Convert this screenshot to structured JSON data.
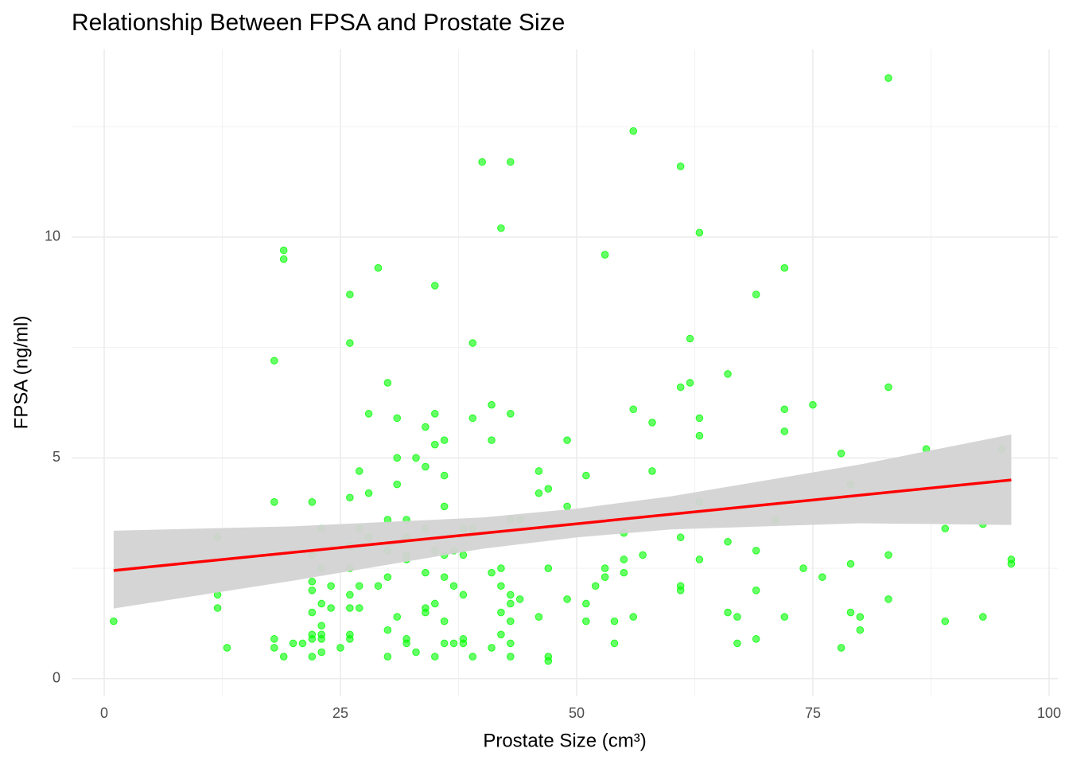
{
  "chart_data": {
    "type": "scatter",
    "title": "Relationship Between FPSA and Prostate Size",
    "x_label": "Prostate Size (cm³)",
    "y_label": "FPSA (ng/ml)",
    "xlim": [
      -3.45,
      100.93
    ],
    "ylim": [
      -0.4,
      14.25
    ],
    "xticks": [
      0,
      25,
      50,
      75,
      100
    ],
    "yticks": [
      0,
      5,
      10
    ],
    "minor_xticks": [
      12.5,
      37.5,
      62.5,
      87.5
    ],
    "minor_yticks": [
      2.5,
      7.5,
      12.5
    ],
    "grid": true,
    "color": "#00ff00",
    "x": [
      1,
      12,
      12,
      12,
      13,
      18,
      18,
      18,
      18,
      19,
      19,
      19,
      20,
      21,
      22,
      22,
      22,
      22,
      22,
      22,
      22,
      22,
      23,
      23,
      23,
      23,
      23,
      23,
      23,
      24,
      24,
      25,
      26,
      26,
      26,
      26,
      26,
      26,
      26,
      26,
      26,
      27,
      27,
      27,
      27,
      28,
      28,
      28,
      29,
      29,
      30,
      30,
      30,
      30,
      30,
      30,
      31,
      31,
      31,
      31,
      32,
      32,
      32,
      32,
      32,
      32,
      33,
      33,
      34,
      34,
      34,
      34,
      34,
      34,
      35,
      35,
      35,
      35,
      35,
      35,
      36,
      36,
      36,
      36,
      36,
      36,
      36,
      37,
      37,
      37,
      38,
      38,
      38,
      38,
      38,
      39,
      39,
      39,
      39,
      40,
      41,
      41,
      41,
      41,
      42,
      42,
      42,
      42,
      42,
      43,
      43,
      43,
      43,
      43,
      43,
      43,
      43,
      44,
      44,
      46,
      46,
      46,
      47,
      47,
      47,
      47,
      49,
      49,
      49,
      51,
      51,
      51,
      52,
      53,
      53,
      53,
      54,
      54,
      55,
      55,
      55,
      56,
      56,
      56,
      57,
      58,
      58,
      61,
      61,
      61,
      61,
      61,
      62,
      62,
      63,
      63,
      63,
      63,
      63,
      66,
      66,
      66,
      67,
      67,
      69,
      69,
      69,
      69,
      71,
      72,
      72,
      72,
      72,
      74,
      75,
      76,
      78,
      78,
      79,
      79,
      79,
      80,
      80,
      83,
      83,
      83,
      83,
      87,
      89,
      89,
      93,
      93,
      95,
      96,
      96
    ],
    "values": [
      1.3,
      3.2,
      1.9,
      1.6,
      0.7,
      7.2,
      4.0,
      0.9,
      0.7,
      9.7,
      9.5,
      0.5,
      0.8,
      0.8,
      4.0,
      2.8,
      2.2,
      2.0,
      1.5,
      1.0,
      0.9,
      0.5,
      3.4,
      2.5,
      1.7,
      1.2,
      1.0,
      0.9,
      0.6,
      2.1,
      1.6,
      0.7,
      8.7,
      7.6,
      4.1,
      3.0,
      2.5,
      1.9,
      1.6,
      1.0,
      0.9,
      4.7,
      3.4,
      2.1,
      1.6,
      6.0,
      4.2,
      3.2,
      9.3,
      2.1,
      6.7,
      3.6,
      2.9,
      2.3,
      1.1,
      0.5,
      5.9,
      5.0,
      4.4,
      1.4,
      3.6,
      3.2,
      2.8,
      2.7,
      0.9,
      0.8,
      5.0,
      0.6,
      5.7,
      4.8,
      3.4,
      2.4,
      1.6,
      1.5,
      8.9,
      6.0,
      5.3,
      2.9,
      1.7,
      0.5,
      5.4,
      4.6,
      3.9,
      2.8,
      2.3,
      1.3,
      0.8,
      2.9,
      2.1,
      0.8,
      3.4,
      2.8,
      1.9,
      0.9,
      0.8,
      7.6,
      5.9,
      3.4,
      0.5,
      11.7,
      6.2,
      5.4,
      2.4,
      0.7,
      10.2,
      2.5,
      2.1,
      1.5,
      1.0,
      11.7,
      6.0,
      3.6,
      1.9,
      1.7,
      1.3,
      0.8,
      0.5,
      3.6,
      1.8,
      4.7,
      4.2,
      1.4,
      4.3,
      2.5,
      0.5,
      0.4,
      5.4,
      3.9,
      1.8,
      4.6,
      1.7,
      1.3,
      2.1,
      9.6,
      2.5,
      2.3,
      1.3,
      0.8,
      3.3,
      2.7,
      2.4,
      12.4,
      6.1,
      1.4,
      2.8,
      5.8,
      4.7,
      11.6,
      6.6,
      3.2,
      2.1,
      2.0,
      7.7,
      6.7,
      10.1,
      5.9,
      5.5,
      4.0,
      2.7,
      6.9,
      3.1,
      1.5,
      1.4,
      0.8,
      8.7,
      2.9,
      2.0,
      0.9,
      3.6,
      9.3,
      6.1,
      5.6,
      1.4,
      2.5,
      6.2,
      2.3,
      5.1,
      0.7,
      4.4,
      2.6,
      1.5,
      1.4,
      1.1,
      13.6,
      6.6,
      2.8,
      1.8,
      5.2,
      3.4,
      1.3,
      3.5,
      1.4,
      5.2,
      2.7,
      2.6
    ],
    "fit": {
      "color": "#ff0000",
      "x": [
        1,
        96
      ],
      "values": [
        2.45,
        4.5
      ]
    },
    "band": {
      "color": "#d3d3d3",
      "x": [
        1,
        20,
        40,
        50,
        60,
        80,
        96
      ],
      "lower": [
        1.59,
        2.22,
        2.94,
        3.2,
        3.38,
        3.52,
        3.48
      ],
      "upper": [
        3.35,
        3.45,
        3.65,
        3.85,
        4.13,
        4.85,
        5.53
      ]
    }
  }
}
